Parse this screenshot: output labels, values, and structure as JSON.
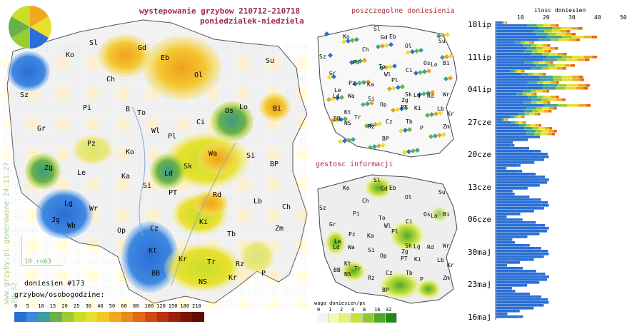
{
  "header": {
    "title": "wystepowanie grzybow 210712-210718",
    "days": "poniedzialek-niedziela"
  },
  "side_watermark": "www.grzyby.pl generowane 24.11.27 20:32",
  "scale_note": "10 r=63",
  "report_count": "doniesien #173",
  "legend_main": {
    "title": "grzybow/osobogodzine:",
    "ticks": [
      "0",
      "5",
      "10",
      "15",
      "20",
      "25",
      "30",
      "40",
      "50",
      "60",
      "80",
      "100",
      "120",
      "150",
      "180",
      "210"
    ],
    "colors": [
      "#2a6fd6",
      "#3f88e0",
      "#3aa0a0",
      "#6ab04a",
      "#9acd32",
      "#c8de2a",
      "#e8e030",
      "#f2c828",
      "#f0a820",
      "#e88a1a",
      "#e06a18",
      "#d04a12",
      "#b8320e",
      "#9a200a",
      "#7c1406",
      "#600c02"
    ]
  },
  "reports_map": {
    "title": "poszczegolne doniesienia",
    "cities": [
      "Sl",
      "Gd",
      "Eb",
      "Ko",
      "Ol",
      "Su",
      "Sz",
      "Ch",
      "Pi",
      "Wl",
      "Bi",
      "Ci",
      "Os",
      "Lo",
      "Gr",
      "Pz",
      "To",
      "Pl",
      "Le",
      "Ka",
      "Sk",
      "Rd",
      "Ld",
      "Wa",
      "Si",
      "Zg",
      "Lg",
      "Wr",
      "Op",
      "PT",
      "Ki",
      "Lb",
      "Kt",
      "Tr",
      "Kr",
      "BB",
      "NS",
      "Rz",
      "Cz",
      "Tb",
      "Zm",
      "P",
      "BP"
    ]
  },
  "density_map": {
    "title": "gestosc informacji",
    "legend_title": "waga doniesien/px",
    "ticks": [
      "0",
      "1",
      "2",
      "4",
      "8",
      "16",
      "32"
    ],
    "colors": [
      "#f4f4f4",
      "#f4f8b0",
      "#e4f080",
      "#c8e040",
      "#90c830",
      "#50a828",
      "#208818"
    ]
  },
  "timeline": {
    "axis_title": "ilosc doniesien",
    "ticks": [
      "10",
      "20",
      "30",
      "40",
      "50"
    ],
    "dates": [
      "18lip",
      "11lip",
      "04lip",
      "27cze",
      "20cze",
      "13cze",
      "06cze",
      "30maj",
      "23maj",
      "16maj"
    ]
  },
  "main_map": {
    "cities": [
      {
        "code": "Sl"
      },
      {
        "code": "Gd"
      },
      {
        "code": "Eb"
      },
      {
        "code": "Ko"
      },
      {
        "code": "Ch"
      },
      {
        "code": "Ol"
      },
      {
        "code": "Su"
      },
      {
        "code": "Sz"
      },
      {
        "code": "Pi"
      },
      {
        "code": "B"
      },
      {
        "code": "To"
      },
      {
        "code": "Os"
      },
      {
        "code": "Lo"
      },
      {
        "code": "Bi"
      },
      {
        "code": "Gr"
      },
      {
        "code": "Wl"
      },
      {
        "code": "Ci"
      },
      {
        "code": "Pl"
      },
      {
        "code": "Pz"
      },
      {
        "code": "Ko"
      },
      {
        "code": "Wa"
      },
      {
        "code": "Si"
      },
      {
        "code": "Zg"
      },
      {
        "code": "Le"
      },
      {
        "code": "Ka"
      },
      {
        "code": "Ld"
      },
      {
        "code": "Sk"
      },
      {
        "code": "BP"
      },
      {
        "code": "Si"
      },
      {
        "code": "PT"
      },
      {
        "code": "Rd"
      },
      {
        "code": "Lb"
      },
      {
        "code": "Lg"
      },
      {
        "code": "Wr"
      },
      {
        "code": "Ch"
      },
      {
        "code": "Jg"
      },
      {
        "code": "Wb"
      },
      {
        "code": "Op"
      },
      {
        "code": "Cz"
      },
      {
        "code": "Ki"
      },
      {
        "code": "Zm"
      },
      {
        "code": "Tb"
      },
      {
        "code": "Kt"
      },
      {
        "code": "Kr"
      },
      {
        "code": "Tr"
      },
      {
        "code": "Rz"
      },
      {
        "code": "BB"
      },
      {
        "code": "NS"
      },
      {
        "code": "Kr"
      },
      {
        "code": "P"
      }
    ]
  }
}
